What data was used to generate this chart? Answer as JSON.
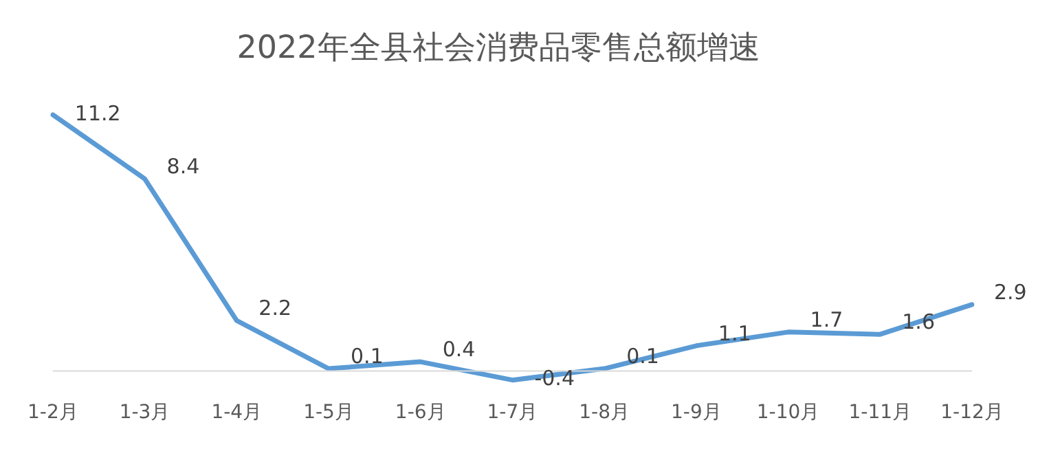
{
  "chart_data": {
    "type": "line",
    "title": "2022年全县社会消费品零售总额增速",
    "categories": [
      "1-2月",
      "1-3月",
      "1-4月",
      "1-5月",
      "1-6月",
      "1-7月",
      "1-8月",
      "1-9月",
      "1-10月",
      "1-11月",
      "1-12月"
    ],
    "series": [
      {
        "color": "#5b9bd5",
        "values": [
          11.2,
          8.4,
          2.2,
          0.1,
          0.4,
          -0.4,
          0.1,
          1.1,
          1.7,
          1.6,
          2.9
        ]
      }
    ],
    "data_labels": true,
    "grid": false,
    "legend": false,
    "marker": "none",
    "line_style": "solid"
  }
}
